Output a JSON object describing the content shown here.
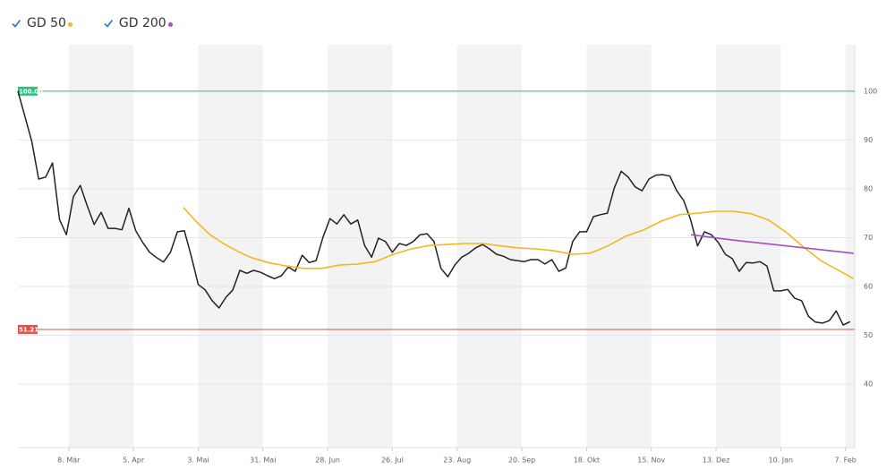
{
  "chart_data": {
    "type": "line",
    "xlim": [
      0,
      362
    ],
    "ylim": [
      27,
      109.5
    ],
    "xticks": [
      {
        "value": 22,
        "label": "8. Mär"
      },
      {
        "value": 50,
        "label": "5. Apr"
      },
      {
        "value": 78,
        "label": "3. Mai"
      },
      {
        "value": 106,
        "label": "31. Mai"
      },
      {
        "value": 134,
        "label": "28. Jun"
      },
      {
        "value": 162,
        "label": "26. Jul"
      },
      {
        "value": 190,
        "label": "23. Aug"
      },
      {
        "value": 218,
        "label": "20. Sep"
      },
      {
        "value": 246,
        "label": "18. Okt"
      },
      {
        "value": 274,
        "label": "15. Nov"
      },
      {
        "value": 302,
        "label": "13. Dez"
      },
      {
        "value": 330,
        "label": "10. Jan"
      },
      {
        "value": 358,
        "label": "7. Feb"
      }
    ],
    "yticks": [
      40,
      50,
      60,
      70,
      80,
      90,
      100
    ],
    "grid": true,
    "reference_lines": [
      {
        "value": 100,
        "label": "100.00",
        "color": "#2fbf7f"
      },
      {
        "value": 51.21,
        "label": "51.21",
        "color": "#e2504a"
      }
    ],
    "series": [
      {
        "color": "#222222",
        "x": [
          0,
          3,
          6,
          9,
          12,
          15,
          18,
          21,
          24,
          27,
          30,
          33,
          36,
          39,
          42,
          45,
          48,
          51,
          54,
          57,
          60,
          63,
          66,
          69,
          72,
          75,
          78,
          81,
          84,
          87,
          90,
          93,
          96,
          99,
          102,
          105,
          108,
          111,
          114,
          117,
          120,
          123,
          126,
          129,
          132,
          135,
          138,
          141,
          144,
          147,
          150,
          153,
          156,
          159,
          162,
          165,
          168,
          171,
          174,
          177,
          180,
          183,
          186,
          189,
          192,
          195,
          198,
          201,
          204,
          207,
          210,
          213,
          216,
          219,
          222,
          225,
          228,
          231,
          234,
          237,
          240,
          243,
          246,
          249,
          252,
          255,
          258,
          261,
          264,
          267,
          270,
          273,
          276,
          279,
          282,
          285,
          288,
          291,
          294,
          297,
          300,
          303,
          306,
          309,
          312,
          315,
          318,
          321,
          324,
          327,
          330,
          333,
          336,
          339,
          342,
          345,
          348,
          351,
          354,
          357,
          360
        ],
        "values": [
          100.0,
          94.9,
          89.7,
          82.0,
          82.4,
          85.3,
          73.7,
          70.6,
          78.4,
          80.7,
          76.5,
          72.7,
          75.2,
          71.9,
          71.9,
          71.6,
          76.0,
          71.4,
          69.0,
          67.0,
          65.9,
          65.0,
          67.0,
          71.2,
          71.4,
          66.2,
          60.4,
          59.3,
          57.1,
          55.6,
          57.8,
          59.3,
          63.3,
          62.7,
          63.3,
          62.9,
          62.2,
          61.6,
          62.2,
          64.0,
          63.1,
          66.4,
          64.9,
          65.3,
          70.1,
          73.9,
          72.8,
          74.7,
          72.8,
          73.6,
          68.4,
          66.0,
          69.9,
          69.2,
          67.0,
          68.8,
          68.4,
          69.2,
          70.6,
          70.8,
          69.2,
          63.7,
          62.0,
          64.4,
          66.0,
          66.8,
          67.9,
          68.6,
          67.7,
          66.6,
          66.2,
          65.5,
          65.3,
          65.1,
          65.5,
          65.5,
          64.6,
          65.5,
          63.1,
          63.8,
          69.2,
          71.2,
          71.2,
          74.3,
          74.7,
          75.0,
          80.2,
          83.6,
          82.4,
          80.4,
          79.6,
          82.0,
          82.8,
          82.9,
          82.6,
          79.6,
          77.6,
          73.7,
          68.3,
          71.2,
          70.6,
          69.0,
          66.6,
          65.7,
          63.1,
          64.9,
          64.8,
          65.1,
          64.2,
          59.1,
          59.1,
          59.4,
          57.6,
          57.1,
          53.9,
          52.7,
          52.5,
          53.0,
          55.0,
          52.1,
          52.8
        ]
      },
      {
        "name": "GD 50",
        "color": "#f2b81c",
        "x": [
          71.5,
          77.3,
          83.1,
          88.9,
          94.7,
          100.5,
          108.3,
          116.0,
          123.7,
          131.5,
          139.2,
          147.0,
          154.7,
          162.4,
          170.2,
          177.9,
          185.6,
          193.4,
          201.1,
          208.8,
          216.6,
          224.3,
          232.0,
          239.8,
          247.5,
          255.2,
          263.0,
          270.7,
          278.4,
          286.2,
          293.9,
          301.6,
          309.4,
          317.1,
          324.8,
          332.6,
          340.3,
          348.0,
          355.8,
          361.5
        ],
        "values": [
          76.2,
          73.2,
          70.6,
          68.8,
          67.3,
          66.0,
          64.9,
          64.2,
          63.7,
          63.7,
          64.4,
          64.6,
          65.1,
          66.6,
          67.7,
          68.4,
          68.6,
          68.8,
          68.8,
          68.3,
          67.9,
          67.7,
          67.3,
          66.6,
          66.8,
          68.3,
          70.3,
          71.6,
          73.4,
          74.7,
          75.0,
          75.4,
          75.4,
          74.9,
          73.6,
          71.0,
          67.9,
          65.1,
          63.1,
          61.6
        ]
      },
      {
        "name": "GD 200",
        "color": "#a64dc0",
        "x": [
          291.2,
          309.4,
          332.6,
          361.5
        ],
        "values": [
          70.6,
          69.5,
          68.3,
          66.8
        ]
      }
    ]
  }
}
